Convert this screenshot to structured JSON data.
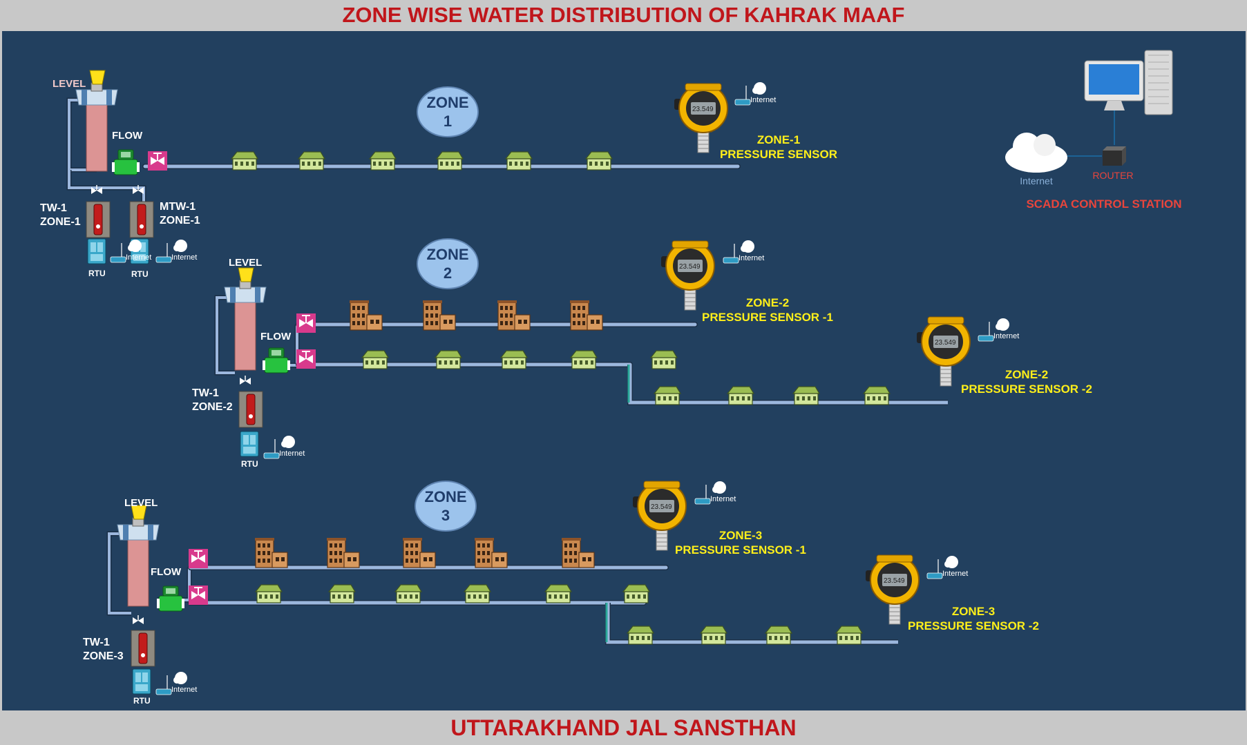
{
  "header": {
    "title": "ZONE WISE WATER DISTRIBUTION OF KAHRAK MAAF"
  },
  "footer": {
    "title": "UTTARAKHAND JAL SANSTHAN"
  },
  "common": {
    "level": "LEVEL",
    "flow": "FLOW",
    "rtu": "RTU",
    "internet": "Internet",
    "display_reading": "23.549"
  },
  "scada": {
    "title": "SCADA CONTROL STATION",
    "router": "ROUTER",
    "internet": "Internet"
  },
  "zone1": {
    "bubble": [
      "ZONE",
      "1"
    ],
    "tw": [
      "TW-1",
      "ZONE-1"
    ],
    "mtw": [
      "MTW-1",
      "ZONE-1"
    ],
    "sensor": [
      "ZONE-1",
      "PRESSURE SENSOR"
    ]
  },
  "zone2": {
    "bubble": [
      "ZONE",
      "2"
    ],
    "tw": [
      "TW-1",
      "ZONE-2"
    ],
    "sensor1": [
      "ZONE-2",
      "PRESSURE SENSOR -1"
    ],
    "sensor2": [
      "ZONE-2",
      "PRESSURE SENSOR -2"
    ]
  },
  "zone3": {
    "bubble": [
      "ZONE",
      "3"
    ],
    "tw": [
      "TW-1",
      "ZONE-3"
    ],
    "sensor1": [
      "ZONE-3",
      "PRESSURE SENSOR -1"
    ],
    "sensor2": [
      "ZONE-3",
      "PRESSURE SENSOR -2"
    ]
  },
  "colors": {
    "background": "#22405f",
    "band": "#c8c8c8",
    "title_red": "#c0161b",
    "zone_label_yellow": "#ffef1a",
    "bubble_fill": "#9cc3ec",
    "pipe": "#9cb7dd",
    "sensor_yellow": "#f2b400",
    "scada_red": "#e8453c"
  }
}
